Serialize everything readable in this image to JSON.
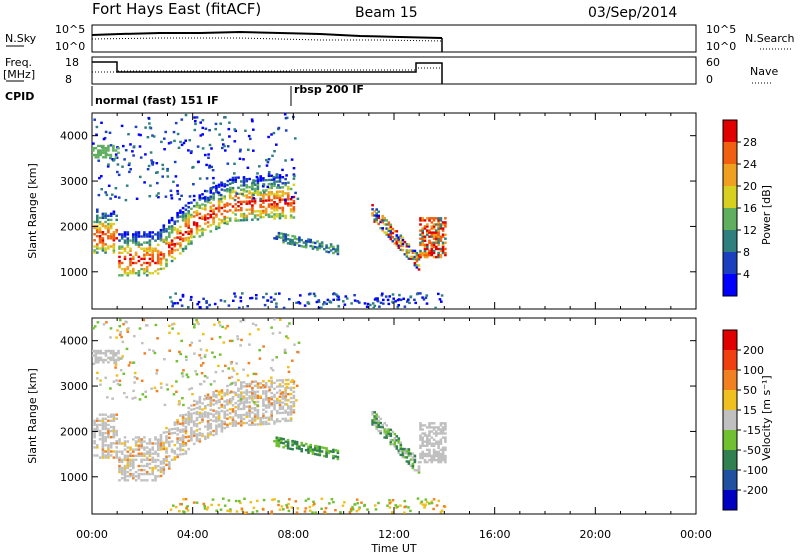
{
  "header": {
    "station": "Fort Hays East (fitACF)",
    "beam": "Beam 15",
    "date": "03/Sep/2014"
  },
  "summary_panels": {
    "nsky_label": "N.Sky",
    "nsearch_label": "N.Search",
    "freq_label_line1": "Freq.",
    "freq_label_line2": "[MHz]",
    "nave_label": "Nave",
    "cpid_label": "CPID",
    "nsky_ticks": [
      "10^5",
      "10^0"
    ],
    "nsearch_ticks": [
      "10^5",
      "10^0"
    ],
    "freq_ticks": [
      "18",
      "8"
    ],
    "nave_ticks": [
      "60",
      "0"
    ],
    "cpid_segments": [
      {
        "label": "normal (fast) 151 IF",
        "start_hour": 0.0
      },
      {
        "label": "rbsp 200 IF",
        "start_hour": 8.0
      }
    ]
  },
  "chart_data": [
    {
      "type": "heatmap",
      "quantity": "Power",
      "ylabel": "Slant Range [km]",
      "xlabel": "Time UT",
      "colorbar_label": "Power [dB]",
      "colorbar_ticks": [
        "4",
        "8",
        "12",
        "16",
        "20",
        "24",
        "28"
      ],
      "colorbar_colors": [
        "#0000ff",
        "#1a3fbf",
        "#2f7f7f",
        "#5faf5f",
        "#d8d020",
        "#f0a020",
        "#f06010",
        "#e00000"
      ],
      "xlim_hours": [
        0,
        24
      ],
      "ylim": [
        180,
        4500
      ],
      "yticks": [
        "1000",
        "2000",
        "3000",
        "4000"
      ]
    },
    {
      "type": "heatmap",
      "quantity": "Velocity",
      "ylabel": "Slant Range [km]",
      "xlabel": "Time UT",
      "colorbar_label": "Velocity [m s⁻¹]",
      "colorbar_ticks": [
        "200",
        "100",
        "50",
        "15",
        "-15",
        "-50",
        "-100",
        "-200"
      ],
      "colorbar_colors": [
        "#0000c0",
        "#2050a0",
        "#308050",
        "#70c030",
        "#c0c0c0",
        "#f0c020",
        "#f08020",
        "#f04010",
        "#e00000"
      ],
      "xlim_hours": [
        0,
        24
      ],
      "ylim": [
        180,
        4500
      ],
      "yticks": [
        "1000",
        "2000",
        "3000",
        "4000"
      ]
    }
  ],
  "time_axis": {
    "ticks": [
      "00:00",
      "04:00",
      "08:00",
      "12:00",
      "16:00",
      "20:00",
      "00:00"
    ],
    "label": "Time UT"
  }
}
